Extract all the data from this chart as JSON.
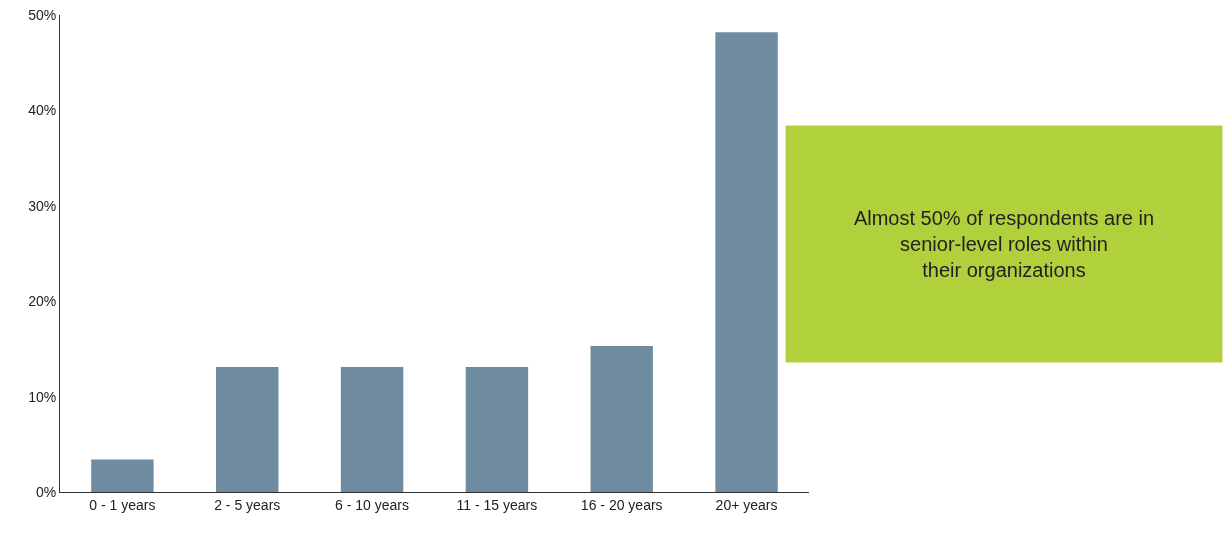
{
  "chart_data": {
    "type": "bar",
    "categories": [
      "0 - 1 years",
      "2 - 5 years",
      "6 - 10 years",
      "11 - 15 years",
      "16 - 20 years",
      "20+ years"
    ],
    "values": [
      3.4,
      13.1,
      13.1,
      13.1,
      15.3,
      48.2
    ],
    "color": "#6f8ba0",
    "ylim": [
      0,
      50
    ],
    "yticks": [
      {
        "value": 0,
        "label": "0%"
      },
      {
        "value": 10,
        "label": "10%"
      },
      {
        "value": 20,
        "label": "20%"
      },
      {
        "value": 30,
        "label": "30%"
      },
      {
        "value": 40,
        "label": "40%"
      },
      {
        "value": 50,
        "label": "50%"
      }
    ],
    "grid": false,
    "legend": false,
    "annotations": [
      "Almost 50% of respondents are in\nsenior-level roles within\ntheir organizations"
    ]
  }
}
